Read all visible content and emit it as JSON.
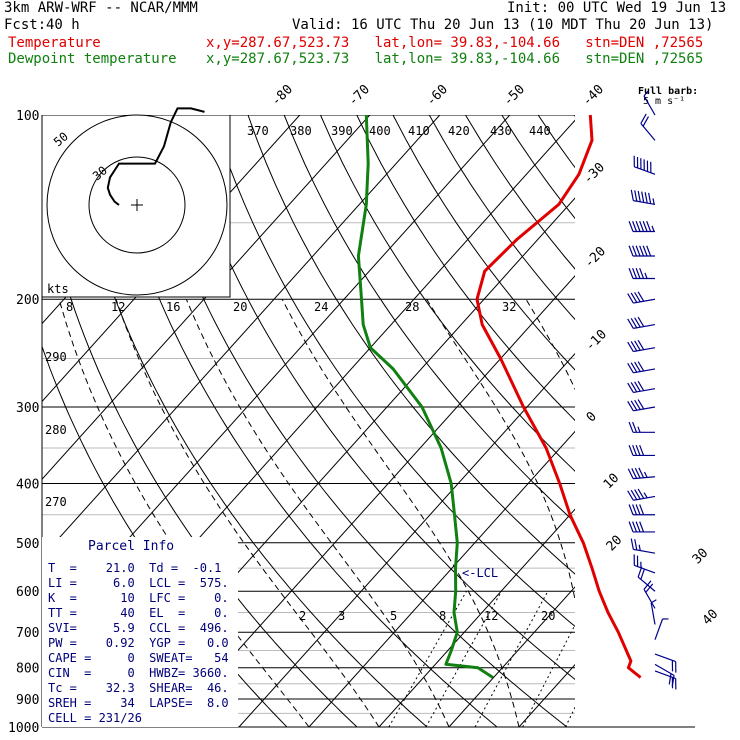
{
  "header": {
    "model": "3km ARW-WRF -- NCAR/MMM",
    "init": "Init: 00 UTC Wed 19 Jun 13",
    "fcst_label": "Fcst:",
    "fcst_value": "40 h",
    "valid": "Valid: 16 UTC Thu 20 Jun 13 (10 MDT Thu 20 Jun 13)",
    "temp_label": "Temperature",
    "dew_label": "Dewpoint temperature",
    "location": "x,y=287.67,523.73   lat,lon= 39.83,-104.66   stn=DEN ,72565"
  },
  "colors": {
    "temperature": "#e00000",
    "dewpoint": "#108010",
    "barbs": "#00008b",
    "panel_text": "#00007a",
    "grid": "#000000"
  },
  "chart_data": {
    "type": "skew-t log-p",
    "pressure_levels": [
      100,
      200,
      300,
      400,
      500,
      600,
      700,
      800,
      900,
      1000
    ],
    "pressure_range_hPa": [
      100,
      1000
    ],
    "isotherm_labels": [
      "-80",
      "-70",
      "-60",
      "-50",
      "-40",
      "-30",
      "-20",
      "-10",
      "0",
      "10",
      "20",
      "30",
      "40"
    ],
    "theta_labels": [
      "370",
      "380",
      "390",
      "400",
      "410",
      "420",
      "430",
      "440"
    ],
    "theta_left_labels": [
      "290",
      "280",
      "270"
    ],
    "mixing_ratio_labels": [
      "2",
      "3",
      "5",
      "8",
      "12",
      "20"
    ],
    "hodograph": {
      "unit": "kts",
      "rings": [
        "50",
        "30"
      ],
      "speed_scale_labels": [
        "8",
        "12",
        "16",
        "20",
        "24",
        "28",
        "32"
      ]
    },
    "barb_legend": {
      "title": "Full barb:",
      "value": "5 m s⁻¹"
    },
    "annotations": {
      "lcl": "<-LCL"
    },
    "temperature_profile": [
      {
        "p": 830,
        "t": 21.0
      },
      {
        "p": 800,
        "t": 18.0
      },
      {
        "p": 780,
        "t": 17.5
      },
      {
        "p": 750,
        "t": 15.5
      },
      {
        "p": 700,
        "t": 12.0
      },
      {
        "p": 650,
        "t": 8.0
      },
      {
        "p": 600,
        "t": 4.0
      },
      {
        "p": 550,
        "t": 0.0
      },
      {
        "p": 500,
        "t": -4.5
      },
      {
        "p": 450,
        "t": -10.0
      },
      {
        "p": 400,
        "t": -15.5
      },
      {
        "p": 350,
        "t": -22.0
      },
      {
        "p": 300,
        "t": -30.5
      },
      {
        "p": 250,
        "t": -40.0
      },
      {
        "p": 220,
        "t": -47.0
      },
      {
        "p": 200,
        "t": -51.0
      },
      {
        "p": 180,
        "t": -53.5
      },
      {
        "p": 160,
        "t": -53.0
      },
      {
        "p": 140,
        "t": -51.5
      },
      {
        "p": 125,
        "t": -52.5
      },
      {
        "p": 110,
        "t": -55.0
      },
      {
        "p": 100,
        "t": -58.5
      }
    ],
    "dewpoint_profile": [
      {
        "p": 830,
        "t": -0.1
      },
      {
        "p": 800,
        "t": -3.5
      },
      {
        "p": 790,
        "t": -8.5
      },
      {
        "p": 750,
        "t": -9.5
      },
      {
        "p": 700,
        "t": -11.0
      },
      {
        "p": 650,
        "t": -14.0
      },
      {
        "p": 600,
        "t": -16.5
      },
      {
        "p": 550,
        "t": -19.5
      },
      {
        "p": 500,
        "t": -22.5
      },
      {
        "p": 450,
        "t": -26.5
      },
      {
        "p": 400,
        "t": -31.0
      },
      {
        "p": 350,
        "t": -37.0
      },
      {
        "p": 300,
        "t": -45.0
      },
      {
        "p": 260,
        "t": -54.0
      },
      {
        "p": 240,
        "t": -60.0
      },
      {
        "p": 220,
        "t": -64.0
      },
      {
        "p": 200,
        "t": -67.5
      },
      {
        "p": 170,
        "t": -73.5
      },
      {
        "p": 140,
        "t": -79.0
      },
      {
        "p": 120,
        "t": -84.0
      },
      {
        "p": 100,
        "t": -90.5
      }
    ],
    "wind_profile": [
      {
        "p": 100,
        "dir": 330,
        "spd": 5
      },
      {
        "p": 110,
        "dir": 320,
        "spd": 10
      },
      {
        "p": 125,
        "dir": 290,
        "spd": 30
      },
      {
        "p": 140,
        "dir": 280,
        "spd": 35
      },
      {
        "p": 155,
        "dir": 270,
        "spd": 35
      },
      {
        "p": 170,
        "dir": 270,
        "spd": 30
      },
      {
        "p": 185,
        "dir": 270,
        "spd": 25
      },
      {
        "p": 200,
        "dir": 260,
        "spd": 20
      },
      {
        "p": 220,
        "dir": 260,
        "spd": 20
      },
      {
        "p": 240,
        "dir": 260,
        "spd": 20
      },
      {
        "p": 260,
        "dir": 260,
        "spd": 20
      },
      {
        "p": 280,
        "dir": 260,
        "spd": 20
      },
      {
        "p": 300,
        "dir": 260,
        "spd": 20
      },
      {
        "p": 330,
        "dir": 270,
        "spd": 15
      },
      {
        "p": 360,
        "dir": 270,
        "spd": 20
      },
      {
        "p": 390,
        "dir": 265,
        "spd": 25
      },
      {
        "p": 420,
        "dir": 260,
        "spd": 25
      },
      {
        "p": 450,
        "dir": 270,
        "spd": 20
      },
      {
        "p": 480,
        "dir": 270,
        "spd": 20
      },
      {
        "p": 520,
        "dir": 280,
        "spd": 15
      },
      {
        "p": 560,
        "dir": 290,
        "spd": 15
      },
      {
        "p": 600,
        "dir": 310,
        "spd": 10
      },
      {
        "p": 640,
        "dir": 330,
        "spd": 10
      },
      {
        "p": 680,
        "dir": 350,
        "spd": 5
      },
      {
        "p": 720,
        "dir": 20,
        "spd": 5
      },
      {
        "p": 760,
        "dir": 110,
        "spd": 10
      },
      {
        "p": 790,
        "dir": 120,
        "spd": 10
      },
      {
        "p": 810,
        "dir": 110,
        "spd": 10
      }
    ],
    "hodograph_trace": [
      {
        "u": 0,
        "v": 0
      },
      {
        "u": -2,
        "v": 1
      },
      {
        "u": -4,
        "v": 3
      },
      {
        "u": -5,
        "v": 5
      },
      {
        "u": -4,
        "v": 8
      },
      {
        "u": -2,
        "v": 10
      },
      {
        "u": 0,
        "v": 12
      },
      {
        "u": 8,
        "v": 12
      },
      {
        "u": 16,
        "v": 12
      },
      {
        "u": 20,
        "v": 17
      },
      {
        "u": 23,
        "v": 24
      },
      {
        "u": 26,
        "v": 28
      },
      {
        "u": 32,
        "v": 28
      },
      {
        "u": 38,
        "v": 27
      }
    ]
  },
  "panel": {
    "title": "Parcel Info",
    "rows": [
      "T  =    21.0  Td =  -0.1",
      "LI =     6.0  LCL =  575.",
      "K  =      10  LFC =    0.",
      "TT =      40  EL  =    0.",
      "SVI=     5.9  CCL =  496.",
      "PW =    0.92  YGP =   0.0",
      "CAPE =     0  SWEAT=   54",
      "CIN  =     0  HWBZ= 3660.",
      "Tc =    32.3  SHEAR=  46.",
      "SREH =    34  LAPSE=  8.0",
      "CELL = 231/26"
    ]
  }
}
